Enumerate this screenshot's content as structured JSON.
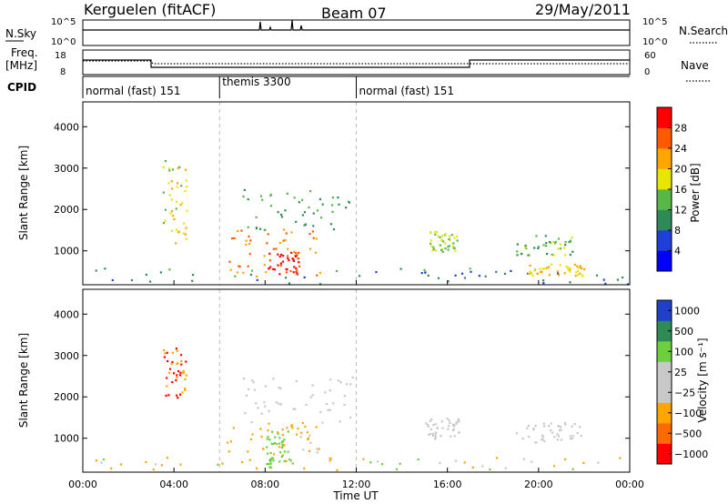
{
  "header": {
    "station": "Kerguelen (fitACF)",
    "beam": "Beam 07",
    "date": "29/May/2011"
  },
  "panels": {
    "nsky_label": "N.Sky",
    "nsearch_label": "N.Search",
    "nsky_ticks": [
      "10^5",
      "10^0"
    ],
    "nsearch_ticks": [
      "10^5",
      "10^0"
    ],
    "freq_label_line1": "Freq.",
    "freq_label_line2": "[MHz]",
    "freq_ticks": [
      "18",
      "8"
    ],
    "nave_label": "Nave",
    "nave_ticks": [
      "60",
      "0"
    ],
    "cpid_label": "CPID",
    "cpid_segments": [
      {
        "label": "normal (fast) 151",
        "start_hour": 0,
        "end_hour": 6
      },
      {
        "label": "themis 3300",
        "start_hour": 6,
        "end_hour": 12
      },
      {
        "label": "normal (fast) 151",
        "start_hour": 12,
        "end_hour": 24
      }
    ]
  },
  "xaxis": {
    "title": "Time UT",
    "ticks": [
      "00:00",
      "04:00",
      "08:00",
      "12:00",
      "16:00",
      "20:00",
      "00:00"
    ],
    "tick_hours": [
      0,
      4,
      8,
      12,
      16,
      20,
      24
    ]
  },
  "chart_data": [
    {
      "type": "heatmap",
      "name": "power",
      "ylabel": "Slant Range [km]",
      "yticks": [
        "1000",
        "2000",
        "3000",
        "4000"
      ],
      "ytick_values": [
        1000,
        2000,
        3000,
        4000
      ],
      "xlim_hours": [
        0,
        24
      ],
      "ylim_km": [
        180,
        4600
      ],
      "colorbar_label": "Power [dB]",
      "colorbar_ticks": [
        "4",
        "8",
        "12",
        "16",
        "20",
        "24",
        "28"
      ],
      "colorbar_tick_values": [
        4,
        8,
        12,
        16,
        20,
        24,
        28
      ],
      "colorbar_range": [
        0,
        32
      ],
      "colors": [
        "#0000ff",
        "#1e40d8",
        "#2e8b57",
        "#57b848",
        "#e6e600",
        "#ffa500",
        "#ff5a00",
        "#ff0000"
      ],
      "blobs": [
        {
          "h0": 3.5,
          "h1": 4.6,
          "r0": 1200,
          "r1": 3200,
          "v": 18
        },
        {
          "h0": 6.3,
          "h1": 10.4,
          "r0": 400,
          "r1": 1600,
          "v": 24
        },
        {
          "h0": 8.0,
          "h1": 9.5,
          "r0": 450,
          "r1": 1000,
          "v": 29
        },
        {
          "h0": 7.0,
          "h1": 11.8,
          "r0": 1500,
          "r1": 2500,
          "v": 12
        },
        {
          "h0": 0.0,
          "h1": 24.0,
          "r0": 200,
          "r1": 600,
          "v": 10
        },
        {
          "h0": 15.2,
          "h1": 16.4,
          "r0": 1000,
          "r1": 1500,
          "v": 16
        },
        {
          "h0": 19.0,
          "h1": 21.5,
          "r0": 900,
          "r1": 1400,
          "v": 14
        },
        {
          "h0": 19.5,
          "h1": 22.0,
          "r0": 400,
          "r1": 700,
          "v": 20
        }
      ]
    },
    {
      "type": "heatmap",
      "name": "velocity",
      "ylabel": "Slant Range [km]",
      "yticks": [
        "1000",
        "2000",
        "3000",
        "4000"
      ],
      "ytick_values": [
        1000,
        2000,
        3000,
        4000
      ],
      "xlim_hours": [
        0,
        24
      ],
      "ylim_km": [
        180,
        4600
      ],
      "colorbar_label": "Velocity [m s⁻¹]",
      "colorbar_ticks": [
        "1000",
        "500",
        "100",
        "25",
        "−25",
        "−100",
        "−500",
        "−1000"
      ],
      "colors": [
        "#2040c8",
        "#2e8b57",
        "#6ccf3c",
        "#c8c8c8",
        "#c8c8c8",
        "#ffa500",
        "#ff6a00",
        "#ff0000"
      ],
      "blobs": [
        {
          "h0": 3.5,
          "h1": 4.6,
          "r0": 2000,
          "r1": 3200,
          "v": "orange-red"
        },
        {
          "h0": 6.3,
          "h1": 10.4,
          "r0": 600,
          "r1": 1400,
          "v": "orange"
        },
        {
          "h0": 7.0,
          "h1": 11.8,
          "r0": 1400,
          "r1": 2500,
          "v": "grey"
        },
        {
          "h0": 8.0,
          "h1": 9.0,
          "r0": 300,
          "r1": 1200,
          "v": "green"
        },
        {
          "h0": 15.0,
          "h1": 16.5,
          "r0": 1000,
          "r1": 1500,
          "v": "grey"
        },
        {
          "h0": 19.0,
          "h1": 22.0,
          "r0": 900,
          "r1": 1400,
          "v": "grey"
        },
        {
          "h0": 0.0,
          "h1": 24.0,
          "r0": 250,
          "r1": 550,
          "v": "mixed"
        }
      ]
    }
  ]
}
